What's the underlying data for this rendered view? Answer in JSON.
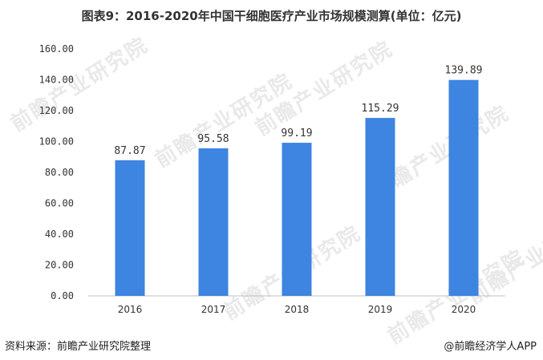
{
  "title": "图表9：2016-2020年中国干细胞医疗产业市场规模测算(单位：亿元)",
  "source": "资料来源：前瞻产业研究院整理",
  "brand": "@前瞻经济学人APP",
  "watermark": "前瞻产业研究院",
  "colors": {
    "bar": "#3d85e0",
    "axis": "#bfbfbf",
    "text": "#333333"
  },
  "chart_data": {
    "type": "bar",
    "categories": [
      "2016",
      "2017",
      "2018",
      "2019",
      "2020"
    ],
    "values": [
      87.87,
      95.58,
      99.19,
      115.29,
      139.89
    ],
    "data_labels": [
      "87.87",
      "95.58",
      "99.19",
      "115.29",
      "139.89"
    ],
    "title": "图表9：2016-2020年中国干细胞医疗产业市场规模测算(单位：亿元)",
    "xlabel": "",
    "ylabel": "",
    "ylim": [
      0,
      160
    ],
    "yticks": [
      "0.00",
      "20.00",
      "40.00",
      "60.00",
      "80.00",
      "100.00",
      "120.00",
      "140.00",
      "160.00"
    ],
    "grid": false,
    "legend": "none"
  }
}
